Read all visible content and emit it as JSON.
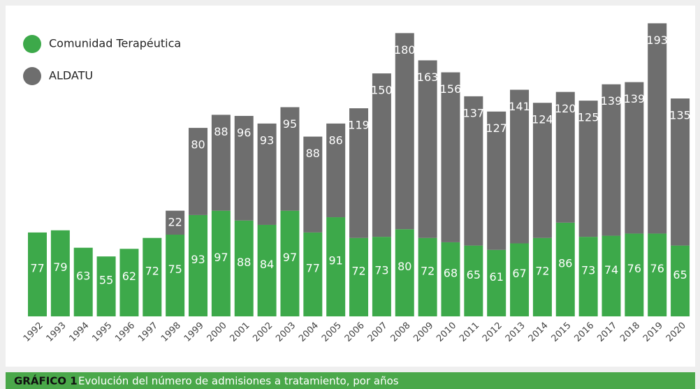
{
  "chart_data": {
    "type": "stacked_bar",
    "caption_label": "GRÁFICO 1",
    "caption_text": "Evolución del número de admisiones a tratamiento, por años",
    "categories": [
      "1992",
      "1993",
      "1994",
      "1995",
      "1996",
      "1997",
      "1998",
      "1999",
      "2000",
      "2001",
      "2002",
      "2003",
      "2004",
      "2005",
      "2006",
      "2007",
      "2008",
      "2009",
      "2010",
      "2011",
      "2012",
      "2013",
      "2014",
      "2015",
      "2016",
      "2017",
      "2018",
      "2019",
      "2020"
    ],
    "series": [
      {
        "name": "Comunidad Terapéutica",
        "color": "#3da94a",
        "values": [
          77,
          79,
          63,
          55,
          62,
          72,
          75,
          93,
          97,
          88,
          84,
          97,
          77,
          91,
          72,
          73,
          80,
          72,
          68,
          65,
          61,
          67,
          72,
          86,
          73,
          74,
          76,
          76,
          65
        ]
      },
      {
        "name": "ALDATU",
        "color": "#6e6e6e",
        "values": [
          null,
          null,
          null,
          null,
          null,
          null,
          22,
          80,
          88,
          96,
          93,
          95,
          88,
          86,
          119,
          150,
          180,
          163,
          156,
          137,
          127,
          141,
          124,
          120,
          125,
          139,
          139,
          193,
          135
        ]
      }
    ]
  }
}
